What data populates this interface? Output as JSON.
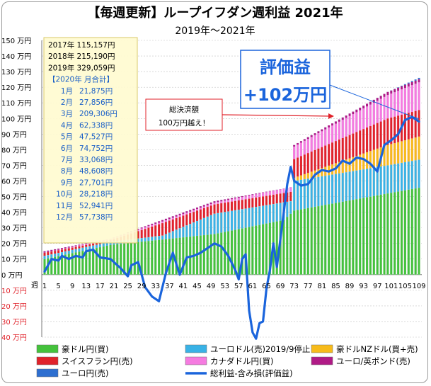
{
  "chart_data": {
    "type": "bar",
    "title": "【毎週更新】ループイフダン週利益 2021年",
    "subtitle": "2019年～2021年",
    "y_unit": "万円",
    "ylim": [
      -40,
      150
    ],
    "yticks": [
      -40,
      -30,
      -20,
      -10,
      0,
      10,
      20,
      30,
      40,
      50,
      60,
      70,
      80,
      90,
      100,
      110,
      120,
      130,
      140,
      150
    ],
    "ytick_labels": [
      "40 万円",
      "30 万円",
      "20 万円",
      "10 万円",
      "0 万円",
      "10 万円",
      "20 万円",
      "30 万円",
      "40 万円",
      "50 万円",
      "60 万円",
      "70 万円",
      "80 万円",
      "90 万円",
      "100 万円",
      "110 万円",
      "120 万円",
      "130 万円",
      "140 万円",
      "150 万円"
    ],
    "x_axis_label": "週",
    "x_range": [
      1,
      109
    ],
    "xtick_labels": [
      "1",
      "5",
      "9",
      "13",
      "17",
      "21",
      "25",
      "29",
      "33",
      "37",
      "41",
      "45",
      "49",
      "53",
      "57",
      "61",
      "65",
      "69",
      "73",
      "77",
      "81",
      "85",
      "89",
      "93",
      "97",
      "101",
      "105",
      "109"
    ],
    "stacked_series": [
      {
        "name": "豪ドル円(買)",
        "color": "#44c23c",
        "cumulative_at": [
          [
            1,
            10
          ],
          [
            20,
            19
          ],
          [
            50,
            26
          ],
          [
            70,
            35
          ],
          [
            73,
            41
          ],
          [
            100,
            52
          ],
          [
            110,
            56
          ]
        ]
      },
      {
        "name": "ユーロドル(売)2019/9停止",
        "color": "#39b2e6",
        "cumulative_at": [
          [
            1,
            12
          ],
          [
            20,
            21
          ],
          [
            35,
            25
          ],
          [
            50,
            39
          ],
          [
            72,
            47
          ],
          [
            73,
            60
          ],
          [
            100,
            70
          ],
          [
            110,
            74
          ]
        ]
      },
      {
        "name": "豪ドルNZドル(買+売)",
        "color": "#f7bb1a",
        "cumulative_at": [
          [
            1,
            12
          ],
          [
            20,
            21
          ],
          [
            35,
            25
          ],
          [
            50,
            39
          ],
          [
            72,
            47
          ],
          [
            73,
            62
          ],
          [
            100,
            83
          ],
          [
            110,
            89
          ]
        ]
      },
      {
        "name": "スイスフラン円(売)",
        "color": "#e0222a",
        "cumulative_at": [
          [
            1,
            14
          ],
          [
            20,
            22
          ],
          [
            35,
            33
          ],
          [
            50,
            45
          ],
          [
            72,
            53
          ],
          [
            73,
            74
          ],
          [
            100,
            100
          ],
          [
            110,
            106
          ]
        ]
      },
      {
        "name": "カナダドル円(買)",
        "color": "#f57be0",
        "cumulative_at": [
          [
            1,
            14
          ],
          [
            20,
            23
          ],
          [
            35,
            34
          ],
          [
            50,
            46
          ],
          [
            72,
            56
          ],
          [
            73,
            82
          ],
          [
            100,
            115
          ],
          [
            110,
            124
          ]
        ]
      },
      {
        "name": "ユーロ/英ポンド(売)",
        "color": "#b01a86",
        "cumulative_at": [
          [
            1,
            15
          ],
          [
            20,
            23
          ],
          [
            35,
            35
          ],
          [
            50,
            47
          ],
          [
            72,
            56
          ],
          [
            73,
            83
          ],
          [
            100,
            117
          ],
          [
            110,
            126
          ]
        ]
      },
      {
        "name": "ユーロ円(売)",
        "color": "#2e6fd0",
        "cumulative_at": [
          [
            1,
            15
          ],
          [
            20,
            23
          ],
          [
            35,
            35
          ],
          [
            50,
            47
          ],
          [
            72,
            56
          ],
          [
            73,
            83
          ],
          [
            100,
            117
          ],
          [
            110,
            127
          ]
        ]
      }
    ],
    "line_series": {
      "name": "総利益-含み損(評価益)",
      "color": "#1a64dc",
      "points": [
        [
          1,
          2
        ],
        [
          3,
          10
        ],
        [
          5,
          9
        ],
        [
          6,
          12
        ],
        [
          8,
          10
        ],
        [
          10,
          12
        ],
        [
          12,
          11
        ],
        [
          13,
          15
        ],
        [
          15,
          16
        ],
        [
          17,
          11
        ],
        [
          20,
          10
        ],
        [
          23,
          4
        ],
        [
          25,
          -1
        ],
        [
          26,
          6
        ],
        [
          28,
          8
        ],
        [
          30,
          -8
        ],
        [
          32,
          -14
        ],
        [
          34,
          -17
        ],
        [
          36,
          1
        ],
        [
          38,
          14
        ],
        [
          40,
          0
        ],
        [
          42,
          11
        ],
        [
          44,
          12
        ],
        [
          46,
          14
        ],
        [
          48,
          17
        ],
        [
          50,
          20
        ],
        [
          52,
          18
        ],
        [
          54,
          12
        ],
        [
          56,
          3
        ],
        [
          57,
          -3
        ],
        [
          58,
          10
        ],
        [
          59,
          13
        ],
        [
          60,
          -23
        ],
        [
          61,
          -37
        ],
        [
          62,
          -41
        ],
        [
          63,
          -31
        ],
        [
          64,
          -30
        ],
        [
          65,
          -9
        ],
        [
          66,
          3
        ],
        [
          67,
          20
        ],
        [
          68,
          5
        ],
        [
          70,
          40
        ],
        [
          71,
          58
        ],
        [
          72,
          69
        ],
        [
          73,
          60
        ],
        [
          75,
          57
        ],
        [
          77,
          58
        ],
        [
          79,
          64
        ],
        [
          81,
          67
        ],
        [
          83,
          66
        ],
        [
          85,
          68
        ],
        [
          87,
          73
        ],
        [
          89,
          71
        ],
        [
          91,
          75
        ],
        [
          93,
          74
        ],
        [
          95,
          71
        ],
        [
          97,
          66
        ],
        [
          99,
          83
        ],
        [
          101,
          86
        ],
        [
          103,
          90
        ],
        [
          105,
          99
        ],
        [
          107,
          101
        ],
        [
          109,
          98
        ]
      ]
    },
    "yearly_totals": [
      {
        "label": "2017年",
        "value": "115,157円"
      },
      {
        "label": "2018年",
        "value": "215,190円"
      },
      {
        "label": "2019年",
        "value": "329,059円"
      }
    ],
    "monthly_header": "【2020年 月合計】",
    "monthly_totals": [
      {
        "label": "1月",
        "value": "21,875円"
      },
      {
        "label": "2月",
        "value": "27,856円"
      },
      {
        "label": "3月",
        "value": "209,306円"
      },
      {
        "label": "4月",
        "value": "62,338円"
      },
      {
        "label": "5月",
        "value": "47,527円"
      },
      {
        "label": "6月",
        "value": "74,752円"
      },
      {
        "label": "7月",
        "value": "33,068円"
      },
      {
        "label": "8月",
        "value": "48,608円"
      },
      {
        "label": "9月",
        "value": "27,701円"
      },
      {
        "label": "10月",
        "value": "28,218円"
      },
      {
        "label": "11月",
        "value": "52,941円"
      },
      {
        "label": "12月",
        "value": "57,738円"
      }
    ],
    "annotations": {
      "settlement_line1": "総決済額",
      "settlement_line2": "100万円越え！",
      "valuation_title": "評価益",
      "valuation_value": "+102万円"
    },
    "legend": [
      {
        "name": "豪ドル円(買)",
        "color": "#44c23c"
      },
      {
        "name": "ユーロドル(売)2019/9停止",
        "color": "#39b2e6"
      },
      {
        "name": "豪ドルNZドル(買+売)",
        "color": "#f7bb1a"
      },
      {
        "name": "スイスフラン円(売)",
        "color": "#e0222a"
      },
      {
        "name": "カナダドル円(買)",
        "color": "#f57be0"
      },
      {
        "name": "ユーロ/英ポンド(売)",
        "color": "#b01a86"
      },
      {
        "name": "ユーロ円(売)",
        "color": "#2e6fd0"
      },
      {
        "name": "総利益-含み損(評価益)",
        "color": "#1a64dc"
      }
    ],
    "legend_position": "bottom",
    "grid": true
  }
}
